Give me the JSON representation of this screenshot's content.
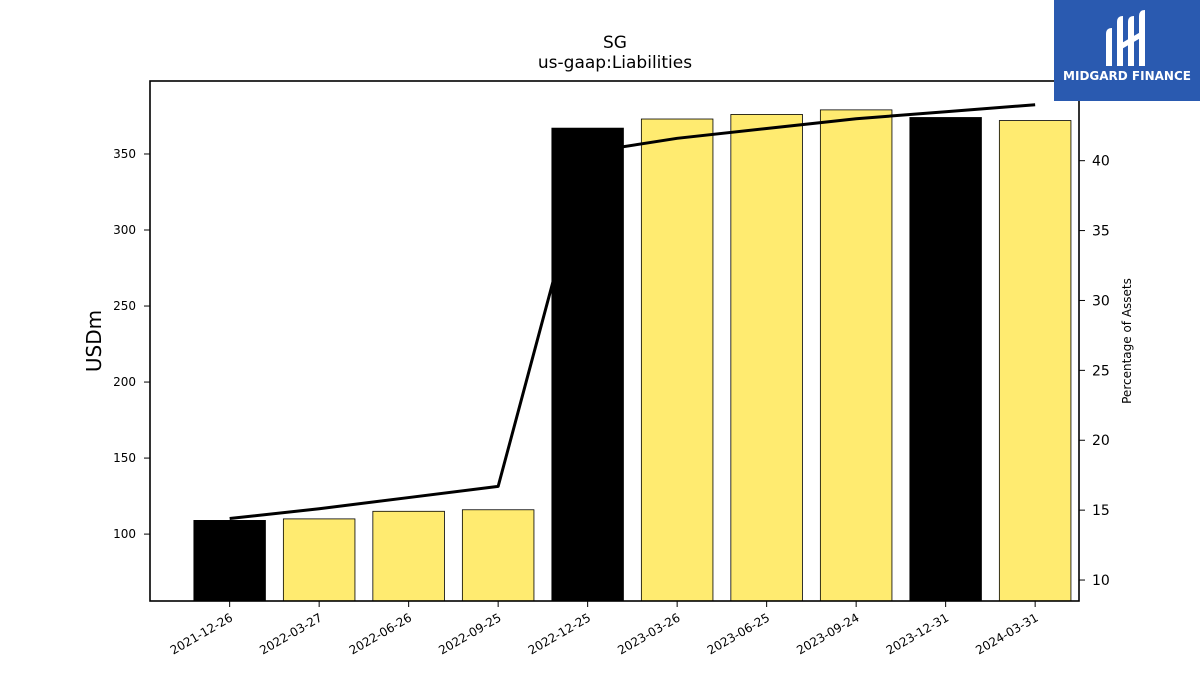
{
  "chart_data": {
    "type": "bar",
    "title": "SG",
    "subtitle": "us-gaap:Liabilities",
    "ylabel": "USDm",
    "y2label": "Percentage of Assets",
    "categories": [
      "2021-12-26",
      "2022-03-27",
      "2022-06-26",
      "2022-09-25",
      "2022-12-25",
      "2023-03-26",
      "2023-06-25",
      "2023-09-24",
      "2023-12-31",
      "2024-03-31"
    ],
    "bar_values": [
      109,
      110,
      115,
      116,
      367,
      373,
      376,
      379,
      374,
      372
    ],
    "bar_colors": [
      "#000000",
      "#ffeb70",
      "#ffeb70",
      "#ffeb70",
      "#000000",
      "#ffeb70",
      "#ffeb70",
      "#ffeb70",
      "#000000",
      "#ffeb70"
    ],
    "line_values": [
      14.4,
      15.1,
      15.9,
      16.7,
      40.6,
      41.6,
      42.3,
      43.0,
      43.5,
      44.0
    ],
    "ylim": [
      56,
      398
    ],
    "y2lim": [
      8.5,
      45.7
    ],
    "yticks": [
      100,
      150,
      200,
      250,
      300,
      350
    ],
    "y2ticks": [
      10,
      15,
      20,
      25,
      30,
      35,
      40
    ],
    "grid": false,
    "legend": "none"
  },
  "logo": {
    "name": "MIDGARD FINANCE",
    "background": "#2a5ab0"
  }
}
